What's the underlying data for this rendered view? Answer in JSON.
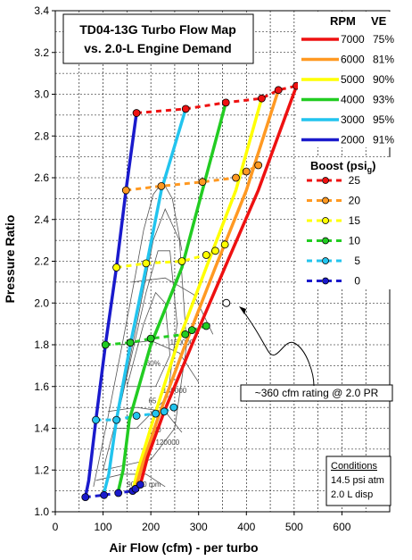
{
  "chart_data": {
    "type": "line",
    "title_line1": "TD04-13G Turbo Flow Map",
    "title_line2": "vs. 2.0-L Engine Demand",
    "xlabel": "Air Flow (cfm) - per turbo",
    "ylabel": "Pressure Ratio",
    "xlim": [
      0,
      700
    ],
    "ylim": [
      1.0,
      3.4
    ],
    "x_ticks": [
      "0",
      "100",
      "200",
      "300",
      "400",
      "500",
      "600"
    ],
    "y_ticks": [
      "1.0",
      "1.2",
      "1.4",
      "1.6",
      "1.8",
      "2.0",
      "2.2",
      "2.4",
      "2.6",
      "2.8",
      "3.0",
      "3.2",
      "3.4"
    ],
    "grid": true,
    "legend_rpm_header": "RPM",
    "legend_ve_header": "VE",
    "rpm_series": [
      {
        "rpm": "2000",
        "ve": "91%",
        "color": "#1a1acc",
        "points": [
          [
            63,
            1.07
          ],
          [
            70,
            1.15
          ],
          [
            85,
            1.44
          ],
          [
            105,
            1.8
          ],
          [
            128,
            2.17
          ],
          [
            148,
            2.54
          ],
          [
            170,
            2.91
          ]
        ]
      },
      {
        "rpm": "3000",
        "ve": "95%",
        "color": "#22c4ee",
        "points": [
          [
            102,
            1.09
          ],
          [
            112,
            1.18
          ],
          [
            128,
            1.44
          ],
          [
            157,
            1.8
          ],
          [
            190,
            2.17
          ],
          [
            222,
            2.54
          ],
          [
            273,
            2.93
          ]
        ]
      },
      {
        "rpm": "4000",
        "ve": "93%",
        "color": "#22cc22",
        "points": [
          [
            132,
            1.1
          ],
          [
            142,
            1.2
          ],
          [
            155,
            1.44
          ],
          [
            200,
            1.8
          ],
          [
            265,
            2.17
          ],
          [
            308,
            2.54
          ],
          [
            357,
            2.96
          ]
        ]
      },
      {
        "rpm": "5000",
        "ve": "90%",
        "color": "#ffff00",
        "points": [
          [
            162,
            1.1
          ],
          [
            173,
            1.2
          ],
          [
            205,
            1.44
          ],
          [
            255,
            1.8
          ],
          [
            316,
            2.17
          ],
          [
            378,
            2.54
          ],
          [
            432,
            2.98
          ]
        ]
      },
      {
        "rpm": "6000",
        "ve": "81%",
        "color": "#ff9922",
        "points": [
          [
            168,
            1.11
          ],
          [
            183,
            1.23
          ],
          [
            215,
            1.45
          ],
          [
            272,
            1.8
          ],
          [
            335,
            2.17
          ],
          [
            400,
            2.54
          ],
          [
            467,
            3.02
          ]
        ]
      },
      {
        "rpm": "7000",
        "ve": "75%",
        "color": "#ee1111",
        "points": [
          [
            178,
            1.13
          ],
          [
            193,
            1.26
          ],
          [
            228,
            1.48
          ],
          [
            286,
            1.8
          ],
          [
            355,
            2.17
          ],
          [
            425,
            2.54
          ],
          [
            505,
            3.04
          ]
        ]
      }
    ],
    "boost_header": "Boost (psi",
    "boost_header_sub": "g",
    "boost_header_close": ")",
    "boost_series": [
      {
        "psi": "25",
        "color": "#ee1111",
        "points": [
          [
            170,
            2.91
          ],
          [
            273,
            2.93
          ],
          [
            357,
            2.96
          ],
          [
            432,
            2.98
          ],
          [
            467,
            3.02
          ],
          [
            505,
            3.04
          ]
        ]
      },
      {
        "psi": "20",
        "color": "#ff9922",
        "points": [
          [
            148,
            2.54
          ],
          [
            222,
            2.56
          ],
          [
            308,
            2.58
          ],
          [
            378,
            2.6
          ],
          [
            400,
            2.63
          ],
          [
            425,
            2.66
          ]
        ]
      },
      {
        "psi": "15",
        "color": "#ffff00",
        "points": [
          [
            128,
            2.17
          ],
          [
            190,
            2.19
          ],
          [
            265,
            2.2
          ],
          [
            316,
            2.23
          ],
          [
            335,
            2.25
          ],
          [
            355,
            2.28
          ]
        ]
      },
      {
        "psi": "10",
        "color": "#22cc22",
        "points": [
          [
            105,
            1.8
          ],
          [
            157,
            1.81
          ],
          [
            200,
            1.83
          ],
          [
            272,
            1.85
          ],
          [
            286,
            1.87
          ],
          [
            316,
            1.89
          ]
        ]
      },
      {
        "psi": "5",
        "color": "#22c4ee",
        "points": [
          [
            85,
            1.44
          ],
          [
            128,
            1.44
          ],
          [
            170,
            1.46
          ],
          [
            210,
            1.47
          ],
          [
            228,
            1.48
          ],
          [
            248,
            1.5
          ]
        ]
      },
      {
        "psi": "0",
        "color": "#1a1acc",
        "points": [
          [
            63,
            1.07
          ],
          [
            102,
            1.08
          ],
          [
            132,
            1.09
          ],
          [
            162,
            1.1
          ],
          [
            168,
            1.11
          ],
          [
            178,
            1.13
          ]
        ]
      }
    ],
    "annotation": "~360 cfm rating @ 2.0 PR",
    "annotation_point": [
      358,
      2.0
    ],
    "conditions_title": "Conditions",
    "conditions_lines": [
      "14.5 psi atm",
      "2.0 L disp"
    ],
    "speed_labels": [
      "90000 rpm",
      "120000",
      "140000",
      "160000"
    ],
    "efficiency_labels": [
      "60%",
      "65",
      "70"
    ]
  }
}
